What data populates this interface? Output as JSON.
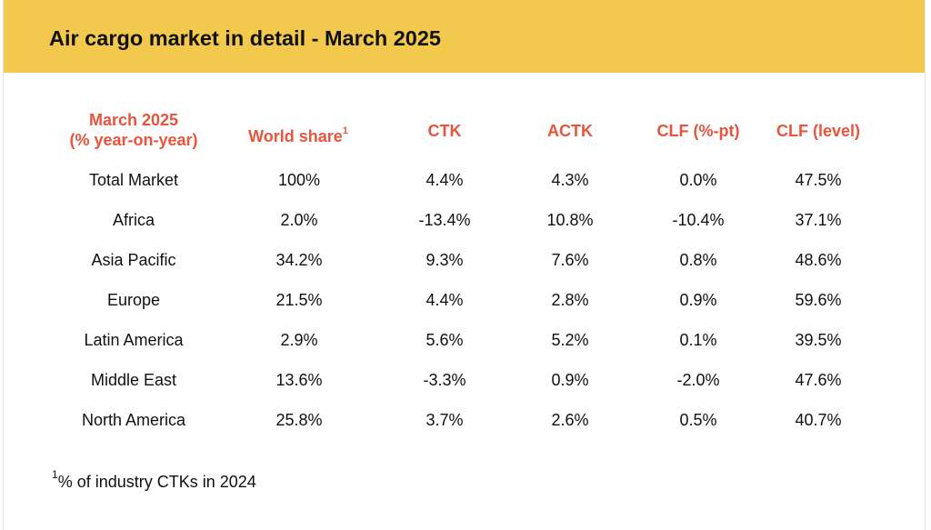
{
  "title": "Air cargo market in detail - March 2025",
  "chart_data": {
    "type": "table",
    "headers": {
      "region_line1": "March 2025",
      "region_line2": "(% year-on-year)",
      "world_share": "World share",
      "world_share_sup": "1",
      "ctk": "CTK",
      "actk": "ACTK",
      "clf_pt": "CLF (%-pt)",
      "clf_level": "CLF (level)"
    },
    "rows": [
      {
        "region": "Total Market",
        "world_share": "100%",
        "ctk": "4.4%",
        "actk": "4.3%",
        "clf_pt": "0.0%",
        "clf_level": "47.5%"
      },
      {
        "region": "Africa",
        "world_share": "2.0%",
        "ctk": "-13.4%",
        "actk": "10.8%",
        "clf_pt": "-10.4%",
        "clf_level": "37.1%"
      },
      {
        "region": "Asia Pacific",
        "world_share": "34.2%",
        "ctk": "9.3%",
        "actk": "7.6%",
        "clf_pt": "0.8%",
        "clf_level": "48.6%"
      },
      {
        "region": "Europe",
        "world_share": "21.5%",
        "ctk": "4.4%",
        "actk": "2.8%",
        "clf_pt": "0.9%",
        "clf_level": "59.6%"
      },
      {
        "region": "Latin America",
        "world_share": "2.9%",
        "ctk": "5.6%",
        "actk": "5.2%",
        "clf_pt": "0.1%",
        "clf_level": "39.5%"
      },
      {
        "region": "Middle East",
        "world_share": "13.6%",
        "ctk": "-3.3%",
        "actk": "0.9%",
        "clf_pt": "-2.0%",
        "clf_level": "47.6%"
      },
      {
        "region": "North America",
        "world_share": "25.8%",
        "ctk": "3.7%",
        "actk": "2.6%",
        "clf_pt": "0.5%",
        "clf_level": "40.7%"
      }
    ]
  },
  "footnote": {
    "marker": "1",
    "text": "% of industry CTKs in 2024"
  },
  "colors": {
    "header_band": "#F2C94C",
    "column_header": "#E8553D",
    "text": "#111111"
  }
}
